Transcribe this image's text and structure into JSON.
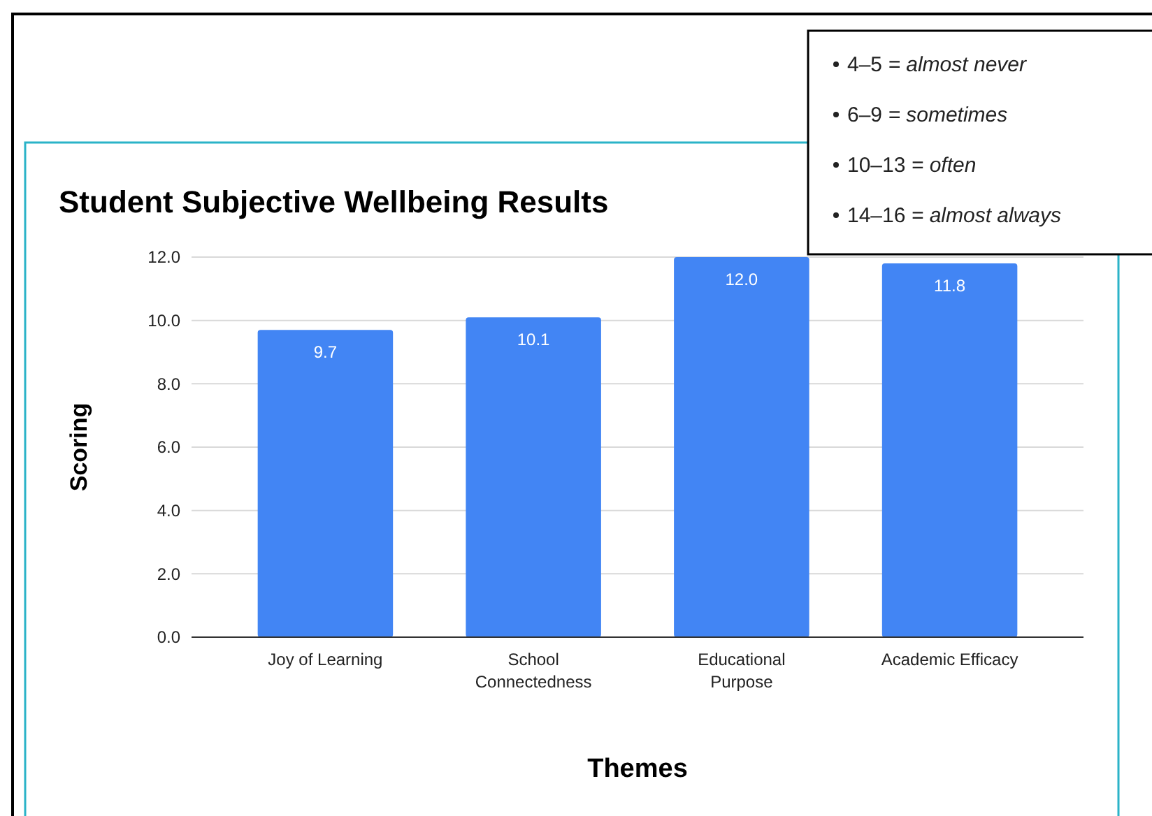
{
  "chart_data": {
    "type": "bar",
    "title": "Student Subjective Wellbeing Results",
    "xlabel": "Themes",
    "ylabel": "Scoring",
    "categories": [
      "Joy of Learning",
      "School Connectedness",
      "Educational Purpose",
      "Academic Efficacy"
    ],
    "values": [
      9.7,
      10.1,
      12.0,
      11.8
    ],
    "value_labels": [
      "9.7",
      "10.1",
      "12.0",
      "11.8"
    ],
    "color": "#4285f4",
    "ylim": [
      0,
      12
    ],
    "yticks": [
      {
        "value": 0,
        "label": "0.0"
      },
      {
        "value": 2,
        "label": "2.0"
      },
      {
        "value": 4,
        "label": "4.0"
      },
      {
        "value": 6,
        "label": "6.0"
      },
      {
        "value": 8,
        "label": "8.0"
      },
      {
        "value": 10,
        "label": "10.0"
      },
      {
        "value": 12,
        "label": "12.0"
      }
    ],
    "grid": "y",
    "annotations": [
      "4–5 = almost never",
      "6–9 = sometimes",
      "10–13 = often",
      "14–16 = almost always"
    ]
  }
}
